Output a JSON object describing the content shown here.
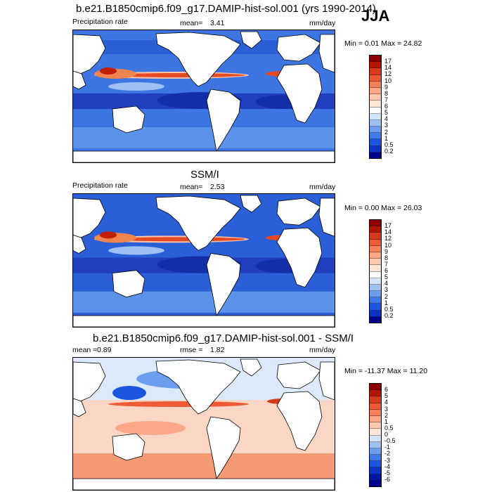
{
  "season": "JJA",
  "panels": [
    {
      "title": "b.e21.B1850cmip6.f09_g17.DAMIP-hist-sol.001 (yrs 1990-2014)",
      "left_label": "Precipitation rate",
      "mid_label": "mean=",
      "mid_value": "3.41",
      "units": "mm/day",
      "minmax": "Min =   0.01 Max =  24.82",
      "colorbar": {
        "labels": [
          "17",
          "14",
          "12",
          "10",
          "9",
          "8",
          "7",
          "6",
          "5",
          "4",
          "3",
          "2",
          "1",
          "0.5",
          "0.2"
        ],
        "colors": [
          "#8b0000",
          "#b41500",
          "#d73a1a",
          "#ee5a35",
          "#f5805a",
          "#fba888",
          "#fcc9b0",
          "#fde6d8",
          "#ffffff",
          "#d2e3fa",
          "#9ec0f2",
          "#6c9ef0",
          "#3f7be8",
          "#1c55dd",
          "#0b33c4",
          "#00008b"
        ]
      },
      "background": "#3d76e2"
    },
    {
      "title": "SSM/I",
      "left_label": "Precipitation rate",
      "mid_label": "mean=",
      "mid_value": "2.53",
      "units": "mm/day",
      "minmax": "Min =   0.00 Max =  26.03",
      "colorbar": {
        "labels": [
          "17",
          "14",
          "12",
          "10",
          "9",
          "8",
          "7",
          "6",
          "5",
          "4",
          "3",
          "2",
          "1",
          "0.5",
          "0.2"
        ],
        "colors": [
          "#8b0000",
          "#b41500",
          "#d73a1a",
          "#ee5a35",
          "#f5805a",
          "#fba888",
          "#fcc9b0",
          "#fde6d8",
          "#ffffff",
          "#d2e3fa",
          "#9ec0f2",
          "#6c9ef0",
          "#3f7be8",
          "#1c55dd",
          "#0b33c4",
          "#00008b"
        ]
      },
      "background": "#2a5fd8"
    },
    {
      "title": "b.e21.B1850cmip6.f09_g17.DAMIP-hist-sol.001 - SSM/I",
      "left_label": "mean =",
      "left_value": "0.89",
      "mid_label": "rmse =",
      "mid_value": "1.82",
      "units": "mm/day",
      "minmax": "Min = -11.37 Max =  11.20",
      "colorbar": {
        "labels": [
          "6",
          "5",
          "4",
          "3",
          "2",
          "1",
          "0.5",
          "0",
          "-0.5",
          "-1",
          "-2",
          "-3",
          "-4",
          "-5",
          "-6"
        ],
        "colors": [
          "#8b0000",
          "#b41500",
          "#d73a1a",
          "#ee5a35",
          "#f5805a",
          "#fba888",
          "#fcc9b0",
          "#fde6d8",
          "#d2e3fa",
          "#9ec0f2",
          "#6c9ef0",
          "#3f7be8",
          "#1c55dd",
          "#0b33c4",
          "#0015a0",
          "#00008b"
        ]
      },
      "background": "#fcd6c4"
    }
  ]
}
